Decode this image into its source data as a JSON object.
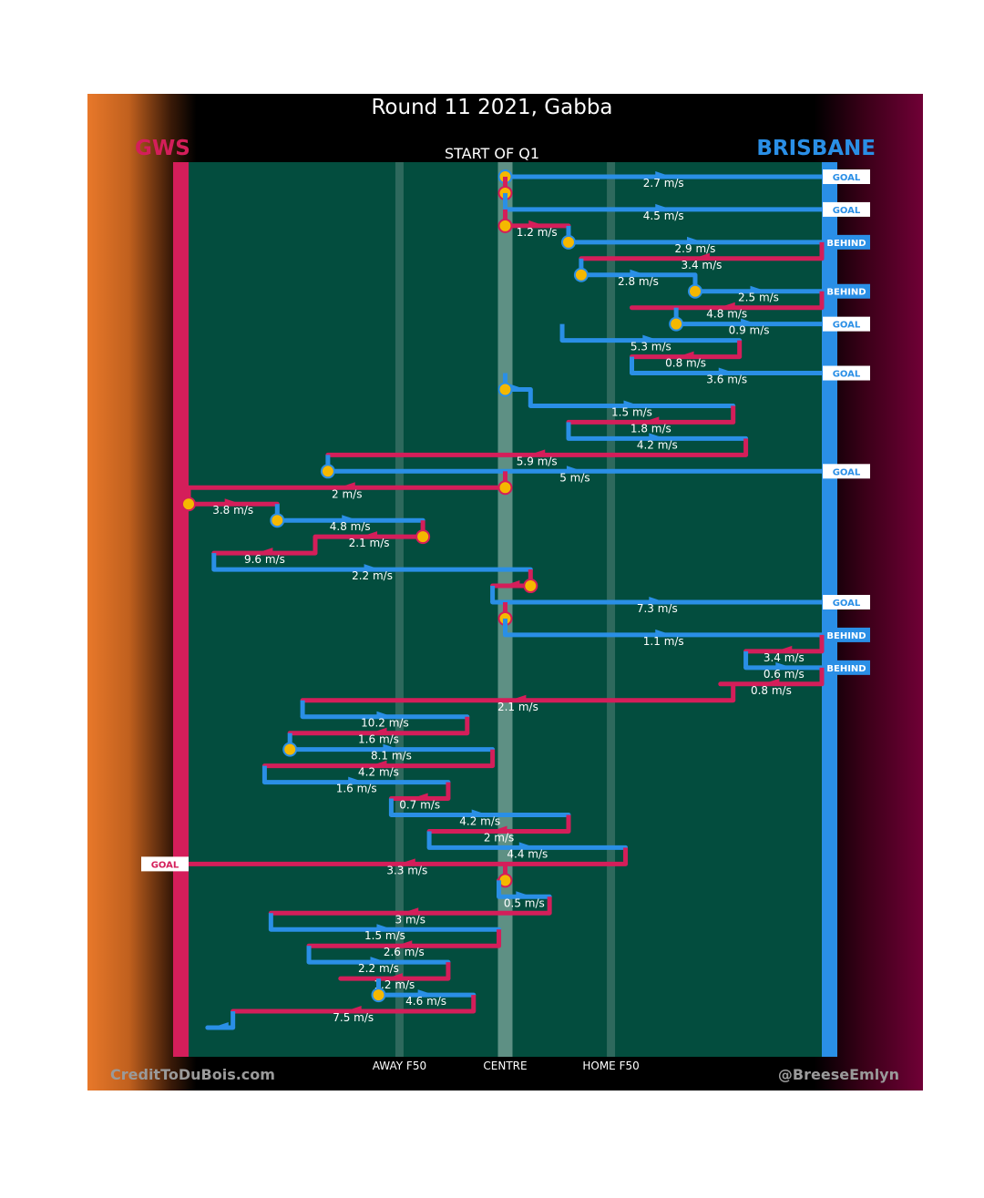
{
  "header": {
    "title": "Round 11 2021, Gabba",
    "subtitle": "START OF Q1"
  },
  "teams": {
    "away": {
      "name": "GWS",
      "color": "#d41e5a"
    },
    "home": {
      "name": "BRISBANE",
      "color": "#2a8fe6"
    }
  },
  "footer": {
    "left": "CreditToDuBois.com",
    "right": "@BreeseEmlyn"
  },
  "chart_data": {
    "type": "line",
    "title": "Round 11 2021, Gabba",
    "subtitle": "START OF Q1",
    "x_ticks": [
      {
        "label": "AWAY F50",
        "value": 0.333
      },
      {
        "label": "CENTRE",
        "value": 0.5
      },
      {
        "label": "HOME F50",
        "value": 0.667
      }
    ],
    "xlim": [
      0,
      1
    ],
    "background": "#034d3e",
    "bounce_marker_color": "#f5b800",
    "chains": [
      {
        "team": "home",
        "x0": 0.5,
        "x1": 1.0,
        "speed": "2.7 m/s",
        "bounce": true,
        "outcome": "GOAL"
      },
      {
        "team": "away",
        "x0": 0.5,
        "x1": 0.5,
        "speed": "",
        "bounce": true
      },
      {
        "team": "home",
        "x0": 0.5,
        "x1": 1.0,
        "speed": "4.5 m/s",
        "outcome": "GOAL"
      },
      {
        "team": "away",
        "x0": 0.5,
        "x1": 0.6,
        "speed": "1.2 m/s",
        "bounce": true
      },
      {
        "team": "home",
        "x0": 0.6,
        "x1": 1.0,
        "speed": "2.9 m/s",
        "bounce": true,
        "outcome": "BEHIND"
      },
      {
        "team": "away",
        "x0": 1.0,
        "x1": 0.62,
        "speed": "3.4 m/s"
      },
      {
        "team": "home",
        "x0": 0.62,
        "x1": 0.8,
        "speed": "2.8 m/s",
        "bounce": true
      },
      {
        "team": "home",
        "x0": 0.8,
        "x1": 1.0,
        "speed": "2.5 m/s",
        "bounce": true,
        "outcome": "BEHIND"
      },
      {
        "team": "away",
        "x0": 1.0,
        "x1": 0.7,
        "speed": "4.8 m/s"
      },
      {
        "team": "home",
        "x0": 0.77,
        "x1": 1.0,
        "speed": "0.9 m/s",
        "bounce": true,
        "outcome": "GOAL"
      },
      {
        "team": "home",
        "x0": 0.59,
        "x1": 0.87,
        "speed": "5.3 m/s"
      },
      {
        "team": "away",
        "x0": 0.87,
        "x1": 0.7,
        "speed": "0.8 m/s"
      },
      {
        "team": "home",
        "x0": 0.7,
        "x1": 1.0,
        "speed": "3.6 m/s",
        "outcome": "GOAL"
      },
      {
        "team": "home",
        "x0": 0.5,
        "x1": 0.54,
        "speed": "",
        "bounce": true
      },
      {
        "team": "home",
        "x0": 0.54,
        "x1": 0.86,
        "speed": "1.5 m/s"
      },
      {
        "team": "away",
        "x0": 0.86,
        "x1": 0.6,
        "speed": "1.8 m/s"
      },
      {
        "team": "home",
        "x0": 0.6,
        "x1": 0.88,
        "speed": "4.2 m/s"
      },
      {
        "team": "away",
        "x0": 0.88,
        "x1": 0.22,
        "speed": "5.9 m/s"
      },
      {
        "team": "home",
        "x0": 0.22,
        "x1": 1.0,
        "speed": "5 m/s",
        "bounce": true,
        "outcome": "GOAL"
      },
      {
        "team": "away",
        "x0": 0.5,
        "x1": 0.0,
        "speed": "2 m/s",
        "bounce": true
      },
      {
        "team": "away",
        "x0": 0.0,
        "x1": 0.14,
        "speed": "3.8 m/s",
        "bounce": true
      },
      {
        "team": "home",
        "x0": 0.14,
        "x1": 0.37,
        "speed": "4.8 m/s",
        "bounce": true
      },
      {
        "team": "away",
        "x0": 0.37,
        "x1": 0.2,
        "speed": "2.1 m/s",
        "bounce": true
      },
      {
        "team": "away",
        "x0": 0.2,
        "x1": 0.04,
        "speed": "9.6 m/s"
      },
      {
        "team": "home",
        "x0": 0.04,
        "x1": 0.54,
        "speed": "2.2 m/s"
      },
      {
        "team": "away",
        "x0": 0.54,
        "x1": 0.48,
        "speed": "",
        "bounce": true
      },
      {
        "team": "home",
        "x0": 0.48,
        "x1": 1.0,
        "speed": "7.3 m/s",
        "outcome": "GOAL"
      },
      {
        "team": "away",
        "x0": 0.5,
        "x1": 0.5,
        "speed": "",
        "bounce": true
      },
      {
        "team": "home",
        "x0": 0.5,
        "x1": 1.0,
        "speed": "1.1 m/s",
        "outcome": "BEHIND"
      },
      {
        "team": "away",
        "x0": 1.0,
        "x1": 0.88,
        "speed": "3.4 m/s"
      },
      {
        "team": "home",
        "x0": 0.88,
        "x1": 1.0,
        "speed": "0.6 m/s",
        "outcome": "BEHIND"
      },
      {
        "team": "away",
        "x0": 1.0,
        "x1": 0.84,
        "speed": "0.8 m/s"
      },
      {
        "team": "away",
        "x0": 0.86,
        "x1": 0.18,
        "speed": "2.1 m/s"
      },
      {
        "team": "home",
        "x0": 0.18,
        "x1": 0.44,
        "speed": "10.2 m/s"
      },
      {
        "team": "away",
        "x0": 0.44,
        "x1": 0.16,
        "speed": "1.6 m/s"
      },
      {
        "team": "home",
        "x0": 0.16,
        "x1": 0.48,
        "speed": "8.1 m/s",
        "bounce": true
      },
      {
        "team": "away",
        "x0": 0.48,
        "x1": 0.12,
        "speed": "4.2 m/s"
      },
      {
        "team": "home",
        "x0": 0.12,
        "x1": 0.41,
        "speed": "1.6 m/s"
      },
      {
        "team": "away",
        "x0": 0.41,
        "x1": 0.32,
        "speed": "0.7 m/s"
      },
      {
        "team": "home",
        "x0": 0.32,
        "x1": 0.6,
        "speed": "4.2 m/s"
      },
      {
        "team": "away",
        "x0": 0.6,
        "x1": 0.38,
        "speed": "2 m/s"
      },
      {
        "team": "home",
        "x0": 0.38,
        "x1": 0.69,
        "speed": "4.4 m/s"
      },
      {
        "team": "away",
        "x0": 0.69,
        "x1": 0.0,
        "speed": "3.3 m/s",
        "outcome": "GOAL"
      },
      {
        "team": "away",
        "x0": 0.5,
        "x1": 0.49,
        "speed": "",
        "bounce": true
      },
      {
        "team": "home",
        "x0": 0.49,
        "x1": 0.57,
        "speed": "0.5 m/s"
      },
      {
        "team": "away",
        "x0": 0.57,
        "x1": 0.13,
        "speed": "3 m/s"
      },
      {
        "team": "home",
        "x0": 0.13,
        "x1": 0.49,
        "speed": "1.5 m/s"
      },
      {
        "team": "away",
        "x0": 0.49,
        "x1": 0.19,
        "speed": "2.6 m/s"
      },
      {
        "team": "home",
        "x0": 0.19,
        "x1": 0.41,
        "speed": "2.2 m/s"
      },
      {
        "team": "away",
        "x0": 0.41,
        "x1": 0.24,
        "speed": "1.2 m/s"
      },
      {
        "team": "home",
        "x0": 0.3,
        "x1": 0.45,
        "speed": "4.6 m/s",
        "bounce": true
      },
      {
        "team": "away",
        "x0": 0.45,
        "x1": 0.07,
        "speed": "7.5 m/s"
      },
      {
        "team": "home",
        "x0": 0.07,
        "x1": 0.03,
        "speed": ""
      }
    ]
  }
}
